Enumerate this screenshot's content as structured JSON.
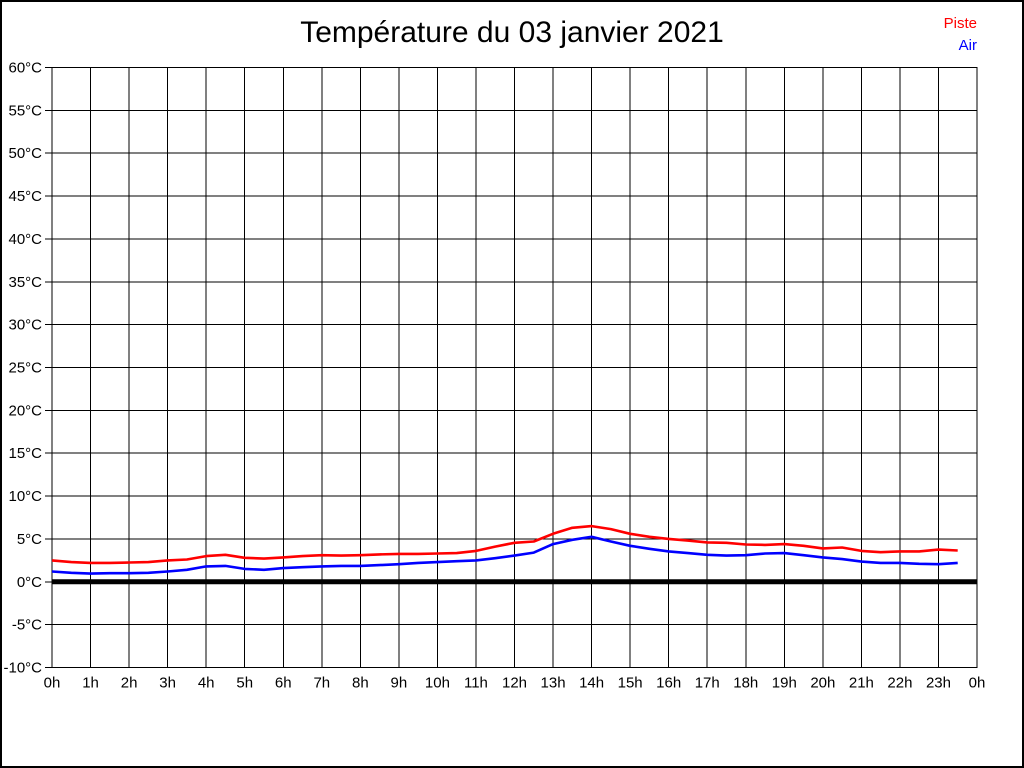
{
  "page": {
    "title": "Température du 03 janvier 2021"
  },
  "chart_data": {
    "type": "line",
    "title": "Température du 03 janvier 2021",
    "xlabel": "",
    "ylabel": "°C",
    "x_unit": "hour of day",
    "ylim": [
      -10,
      60
    ],
    "ytick_step": 5,
    "grid": true,
    "zero_line_thick": true,
    "legend_position": "top-right",
    "ytick_values": [
      60,
      55,
      50,
      45,
      40,
      35,
      30,
      25,
      20,
      15,
      10,
      5,
      0,
      -5,
      -10
    ],
    "ytick_labels": [
      "60°C",
      "55°C",
      "50°C",
      "45°C",
      "40°C",
      "35°C",
      "30°C",
      "25°C",
      "20°C",
      "15°C",
      "10°C",
      "5°C",
      "0°C",
      "-5°C",
      "-10°C"
    ],
    "xtick_values": [
      0,
      1,
      2,
      3,
      4,
      5,
      6,
      7,
      8,
      9,
      10,
      11,
      12,
      13,
      14,
      15,
      16,
      17,
      18,
      19,
      20,
      21,
      22,
      23,
      24
    ],
    "xtick_labels": [
      "0h",
      "1h",
      "2h",
      "3h",
      "4h",
      "5h",
      "6h",
      "7h",
      "8h",
      "9h",
      "10h",
      "11h",
      "12h",
      "13h",
      "14h",
      "15h",
      "16h",
      "17h",
      "18h",
      "19h",
      "20h",
      "21h",
      "22h",
      "23h",
      "0h"
    ],
    "x": [
      0,
      0.5,
      1,
      1.5,
      2,
      2.5,
      3,
      3.5,
      4,
      4.5,
      5,
      5.5,
      6,
      6.5,
      7,
      7.5,
      8,
      8.5,
      9,
      9.5,
      10,
      10.5,
      11,
      11.5,
      12,
      12.5,
      13,
      13.5,
      14,
      14.5,
      15,
      15.5,
      16,
      16.5,
      17,
      17.5,
      18,
      18.5,
      19,
      19.5,
      20,
      20.5,
      21,
      21.5,
      22,
      22.5,
      23,
      23.5
    ],
    "series": [
      {
        "name": "Piste",
        "color": "#ff0000",
        "values": [
          2.5,
          2.3,
          2.2,
          2.2,
          2.25,
          2.3,
          2.5,
          2.6,
          3.0,
          3.15,
          2.8,
          2.7,
          2.85,
          3.0,
          3.1,
          3.05,
          3.1,
          3.2,
          3.25,
          3.25,
          3.3,
          3.35,
          3.6,
          4.1,
          4.55,
          4.7,
          5.6,
          6.3,
          6.5,
          6.15,
          5.6,
          5.25,
          5.0,
          4.8,
          4.6,
          4.55,
          4.35,
          4.3,
          4.4,
          4.2,
          3.9,
          4.0,
          3.6,
          3.45,
          3.55,
          3.55,
          3.75,
          3.65
        ]
      },
      {
        "name": "Air",
        "color": "#0000ff",
        "values": [
          1.2,
          1.05,
          0.95,
          1.0,
          1.0,
          1.05,
          1.2,
          1.4,
          1.8,
          1.85,
          1.5,
          1.4,
          1.6,
          1.7,
          1.8,
          1.85,
          1.85,
          1.95,
          2.05,
          2.2,
          2.3,
          2.4,
          2.5,
          2.75,
          3.05,
          3.4,
          4.4,
          4.9,
          5.25,
          4.7,
          4.2,
          3.85,
          3.55,
          3.35,
          3.15,
          3.05,
          3.1,
          3.3,
          3.35,
          3.1,
          2.85,
          2.65,
          2.35,
          2.2,
          2.2,
          2.1,
          2.05,
          2.2
        ]
      }
    ]
  }
}
